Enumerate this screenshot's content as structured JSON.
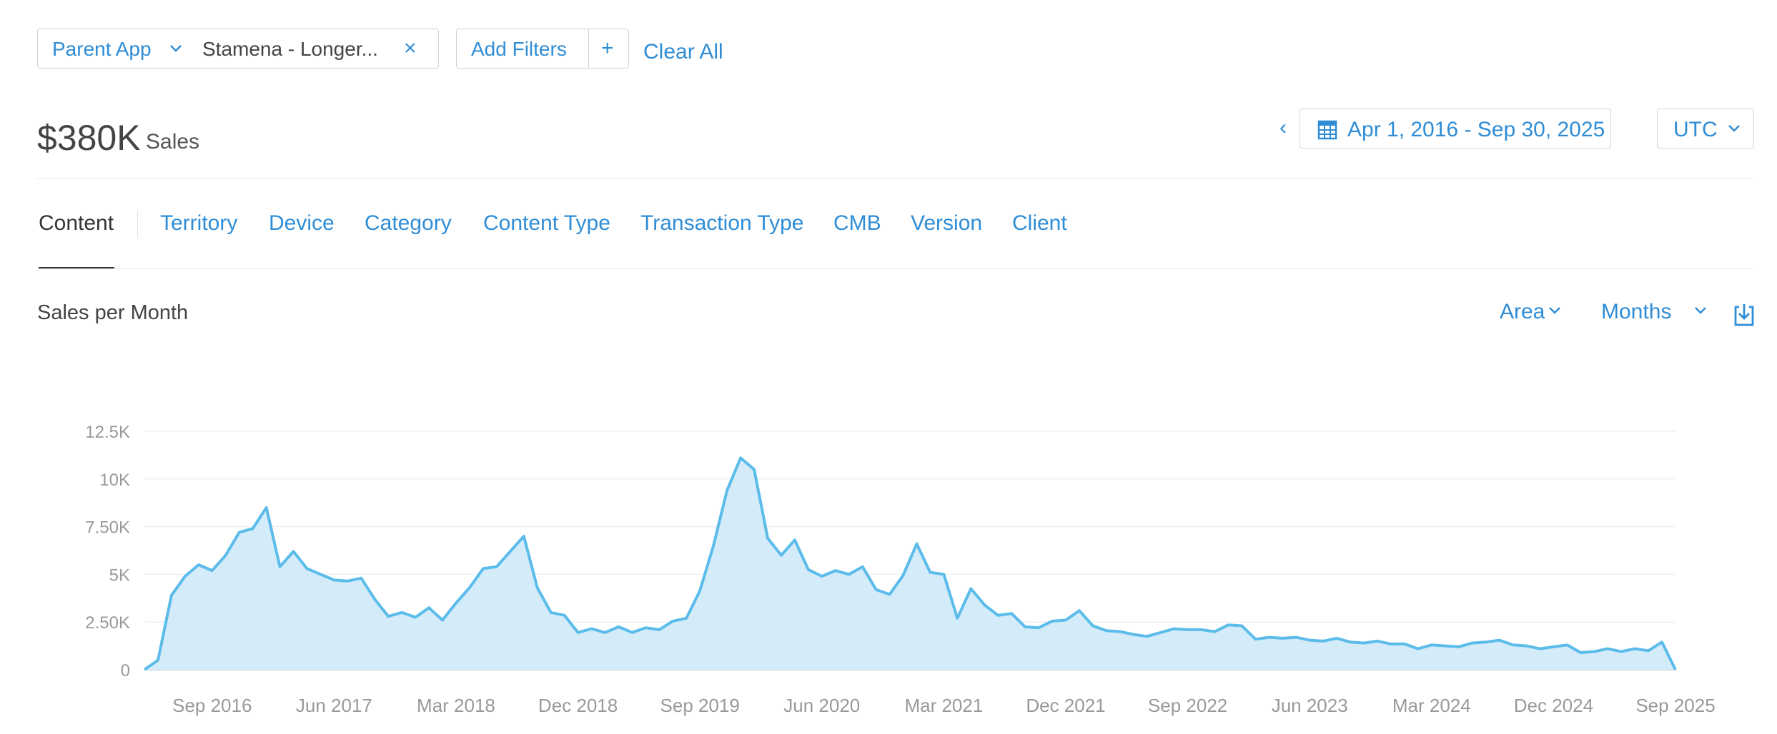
{
  "filters": {
    "parent_label": "Parent App",
    "parent_value": "Stamena - Longer...",
    "clear_symbol": "×",
    "add_label": "Add Filters",
    "add_symbol": "+",
    "clear_all": "Clear All"
  },
  "summary": {
    "total_value": "$380K",
    "total_label": "Sales",
    "date_prev_symbol": "‹",
    "date_range": "Apr 1, 2016 - Sep 30, 2025",
    "timezone": "UTC"
  },
  "tabs": [
    "Content",
    "Territory",
    "Device",
    "Category",
    "Content Type",
    "Transaction Type",
    "CMB",
    "Version",
    "Client"
  ],
  "chart_header": {
    "title": "Sales per Month",
    "chart_type_label": "Area",
    "interval_label": "Months"
  },
  "colors": {
    "accent": "#2f8dd6",
    "series_line": "#5bbcea",
    "series_fill": "#d4ecfa"
  },
  "icons": [
    "chevron-down-icon",
    "close-icon",
    "plus-icon",
    "chevron-left-icon",
    "calendar-icon",
    "download-icon"
  ],
  "chart_data": {
    "type": "area",
    "title": "Sales per Month",
    "xlabel": "",
    "ylabel": "",
    "x_start": "Apr 2016",
    "x_end": "Oct 2025",
    "x_tick_labels": [
      "Sep 2016",
      "Jun 2017",
      "Mar 2018",
      "Dec 2018",
      "Sep 2019",
      "Jun 2020",
      "Mar 2021",
      "Dec 2021",
      "Sep 2022",
      "Jun 2023",
      "Mar 2024",
      "Dec 2024",
      "Sep 2025"
    ],
    "y_tick_labels": [
      "0",
      "2.50K",
      "5K",
      "7.50K",
      "10K",
      "12.5K"
    ],
    "y_ticks": [
      0,
      2500,
      5000,
      7500,
      10000,
      12500
    ],
    "ylim": [
      0,
      12500
    ],
    "grid": true,
    "series": [
      {
        "values": [
          0,
          500,
          3900,
          4900,
          5500,
          5200,
          6000,
          7200,
          7400,
          8500,
          5400,
          6200,
          5300,
          5000,
          4700,
          4650,
          4800,
          3700,
          2800,
          3000,
          2750,
          3250,
          2600,
          3500,
          4300,
          5300,
          5400,
          6200,
          7000,
          4300,
          3000,
          2850,
          1950,
          2150,
          1950,
          2250,
          1950,
          2200,
          2100,
          2550,
          2700,
          4150,
          6500,
          9400,
          11100,
          10500,
          6900,
          6000,
          6800,
          5250,
          4900,
          5200,
          5000,
          5400,
          4200,
          3950,
          4950,
          6600,
          5100,
          5000,
          2700,
          4250,
          3400,
          2850,
          2950,
          2250,
          2200,
          2550,
          2600,
          3100,
          2300,
          2050,
          2000,
          1850,
          1750,
          1950,
          2150,
          2100,
          2100,
          2000,
          2350,
          2300,
          1600,
          1700,
          1650,
          1700,
          1550,
          1500,
          1650,
          1450,
          1400,
          1500,
          1350,
          1350,
          1100,
          1300,
          1250,
          1200,
          1400,
          1450,
          1550,
          1300,
          1250,
          1100,
          1200,
          1300,
          900,
          950,
          1100,
          950,
          1100,
          1000,
          1450,
          0
        ]
      }
    ]
  }
}
